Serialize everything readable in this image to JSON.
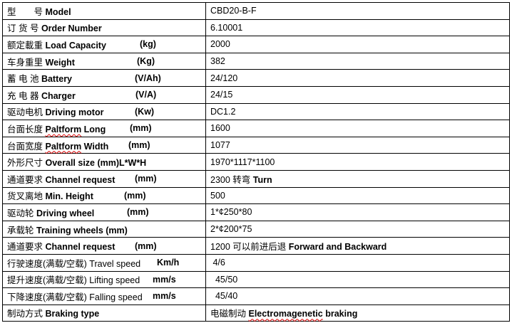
{
  "rows": [
    {
      "cn": "型　　号",
      "en": "Model",
      "enb": true,
      "unit": "",
      "value": "CBD20-B-F"
    },
    {
      "cn": "订 货 号",
      "en": "Order Number",
      "enb": true,
      "unit": "",
      "value": "6.10001"
    },
    {
      "cn": "额定載重 ",
      "en": "Load Capacity",
      "enb": true,
      "unit": "(kg)",
      "ux": 192,
      "value": "2000"
    },
    {
      "cn": "车身重里",
      "en": "Weight",
      "enb": true,
      "unit": "(Kg)",
      "ux": 188,
      "value": "382"
    },
    {
      "cn": "蓄 电 池",
      "en": "Battery",
      "enb": true,
      "unit": "(V/Ah)",
      "ux": 185,
      "value": "24/120"
    },
    {
      "cn": "充 电 器",
      "en": "Charger",
      "enb": true,
      "unit": "(V/A)",
      "ux": 186,
      "value": "24/15"
    },
    {
      "cn": "驱动电机",
      "en": "Driving motor",
      "enb": true,
      "unit": "(Kw)",
      "ux": 185,
      "value": "DC1.2"
    },
    {
      "cn": "台面长度 ",
      "en": "Paltform Long",
      "enb": true,
      "sq": "Paltform",
      "unit": "(mm)",
      "ux": 178,
      "value": "1600"
    },
    {
      "cn": "台面宽度 ",
      "en": "Paltform Width",
      "enb": true,
      "sq": "Paltform",
      "unit": "(mm)",
      "ux": 176,
      "value": "1077"
    },
    {
      "cn": "外形尺寸",
      "en": "Overall size (mm)L*W*H",
      "enb": true,
      "unit": "",
      "value": "1970*1117*1100"
    },
    {
      "cn": "通道要求 ",
      "en": "Channel request",
      "enb": true,
      "unit": "(mm)",
      "ux": 185,
      "value": "2300 转弯",
      "value_b": "Turn"
    },
    {
      "cn": "货叉离地",
      "en": "Min. Height",
      "enb": true,
      "unit": "(mm)",
      "ux": 170,
      "value": "500"
    },
    {
      "cn": "驱动轮 ",
      "en": "Driving wheel",
      "enb": true,
      "unit": "(mm)",
      "ux": 174,
      "value": "1*¢250*80"
    },
    {
      "cn": "承载轮",
      "en": "Training wheels (mm)",
      "enb": true,
      "unit": "",
      "value": "2*¢200*75"
    },
    {
      "cn": "通道要求 ",
      "en": "Channel request",
      "enb": true,
      "unit": "(mm)",
      "ux": 185,
      "value": "1200 可以前进后退",
      "value_b": "Forward and Backward"
    },
    {
      "cn": "行驶速度(满载/空载)",
      "en": "Travel speed",
      "enb": false,
      "unit": "Km/h",
      "ux": 216,
      "value": " 4/6"
    },
    {
      "cn": "提升速度(满载/空载)",
      "en": " Lifting speed",
      "enb": false,
      "unit": "mm/s",
      "ux": 210,
      "value": "  45/50"
    },
    {
      "cn": "下降速度(满载/空载)",
      "en": "Falling speed",
      "enb": false,
      "unit": "mm/s",
      "ux": 210,
      "value": "  45/40"
    },
    {
      "cn": "制动方式",
      "en": "Braking type",
      "enb": true,
      "unit": "",
      "value": "电磁制动",
      "value_b": "Electromagenetic braking",
      "value_sq": true
    }
  ]
}
